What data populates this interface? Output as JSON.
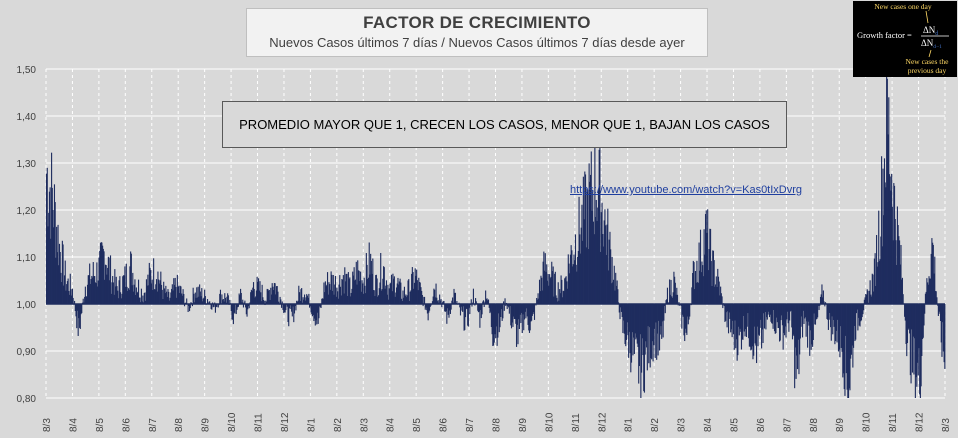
{
  "header": {
    "title": "FACTOR DE CRECIMIENTO",
    "subtitle": "Nuevos Casos últimos 7 días / Nuevos Casos últimos 7 días desde ayer"
  },
  "note": "PROMEDIO MAYOR QUE 1, CRECEN LOS CASOS, MENOR QUE 1, BAJAN LOS CASOS",
  "link": "https://www.youtube.com/watch?v=Kas0tIxDvrg",
  "formula": {
    "top_label": "New cases one day",
    "lhs": "Growth factor =",
    "numerator": "ΔN",
    "numerator_sub": "d",
    "denominator": "ΔN",
    "denominator_sub": "d−1",
    "bottom_label_1": "New cases the",
    "bottom_label_2": "previous day"
  },
  "colors": {
    "bars": "#1f2d5f",
    "grid": "#ffffff",
    "plot_bg": "#d9d9d9",
    "formula_text": "#ffd966",
    "formula_accent": "#4472c4"
  },
  "chart_data": {
    "type": "bar",
    "baseline": 1.0,
    "ylim": [
      0.8,
      1.5
    ],
    "yticks": [
      "1,50",
      "1,40",
      "1,30",
      "1,20",
      "1,10",
      "1,00",
      "0,90",
      "0,80"
    ],
    "ytick_values": [
      1.5,
      1.4,
      1.3,
      1.2,
      1.1,
      1.0,
      0.9,
      0.8
    ],
    "xtick_labels": [
      "8/3",
      "8/4",
      "8/5",
      "8/6",
      "8/7",
      "8/8",
      "8/9",
      "8/10",
      "8/11",
      "8/12",
      "8/1",
      "8/2",
      "8/3",
      "8/4",
      "8/5",
      "8/6",
      "8/7",
      "8/8",
      "8/9",
      "8/10",
      "8/11",
      "8/12",
      "8/1",
      "8/2",
      "8/3",
      "8/4",
      "8/5",
      "8/6",
      "8/7",
      "8/8",
      "8/9",
      "8/10",
      "8/11",
      "8/12",
      "8/3"
    ],
    "grid": true,
    "series_profile": [
      {
        "segment": "8/3",
        "values": [
          1.28,
          1.22,
          1.12,
          1.05
        ]
      },
      {
        "segment": "8/4",
        "values": [
          1.03,
          0.94,
          1.04,
          1.06
        ]
      },
      {
        "segment": "8/5",
        "values": [
          1.07,
          1.11,
          1.06,
          1.03
        ]
      },
      {
        "segment": "8/6",
        "values": [
          1.05,
          1.08,
          1.04,
          1.02
        ]
      },
      {
        "segment": "8/7",
        "values": [
          1.06,
          1.07,
          1.03,
          1.01
        ]
      },
      {
        "segment": "8/8",
        "values": [
          1.04,
          1.02,
          0.99,
          1.03
        ]
      },
      {
        "segment": "8/9",
        "values": [
          1.02,
          1.01,
          0.99,
          1.02
        ]
      },
      {
        "segment": "8/10",
        "values": [
          1.01,
          0.97,
          1.02,
          0.98
        ]
      },
      {
        "segment": "8/11",
        "values": [
          1.04,
          1.03,
          1.01,
          1.05
        ]
      },
      {
        "segment": "8/12",
        "values": [
          1.02,
          0.98,
          0.97,
          1.02
        ]
      },
      {
        "segment": "8/1",
        "values": [
          1.03,
          0.99,
          0.96,
          1.04
        ]
      },
      {
        "segment": "8/2",
        "values": [
          1.05,
          1.04,
          1.06,
          1.03
        ]
      },
      {
        "segment": "8/3",
        "values": [
          1.07,
          1.05,
          1.09,
          1.04
        ]
      },
      {
        "segment": "8/4",
        "values": [
          1.08,
          1.03,
          1.05,
          1.02
        ]
      },
      {
        "segment": "8/5",
        "values": [
          1.03,
          1.06,
          1.02,
          0.98
        ]
      },
      {
        "segment": "8/6",
        "values": [
          1.04,
          1.01,
          0.97,
          1.02
        ]
      },
      {
        "segment": "8/7",
        "values": [
          0.98,
          0.96,
          1.02,
          0.97
        ]
      },
      {
        "segment": "8/8",
        "values": [
          1.03,
          0.94,
          0.95,
          1.01
        ]
      },
      {
        "segment": "8/9",
        "values": [
          0.96,
          0.93,
          0.98,
          0.95
        ]
      },
      {
        "segment": "8/10",
        "values": [
          1.02,
          1.08,
          1.06,
          1.03
        ]
      },
      {
        "segment": "8/11",
        "values": [
          1.04,
          1.1,
          1.14,
          1.18
        ]
      },
      {
        "segment": "8/12",
        "values": [
          1.22,
          1.26,
          1.2,
          1.12
        ]
      },
      {
        "segment": "8/1",
        "values": [
          1.05,
          0.95,
          0.92,
          0.88
        ]
      },
      {
        "segment": "8/2",
        "values": [
          0.86,
          0.9,
          0.93,
          0.91
        ]
      },
      {
        "segment": "8/3",
        "values": [
          1.02,
          1.05,
          0.98,
          0.93
        ]
      },
      {
        "segment": "8/4",
        "values": [
          1.06,
          1.1,
          1.15,
          1.08
        ]
      },
      {
        "segment": "8/5",
        "values": [
          1.04,
          0.97,
          0.94,
          0.92
        ]
      },
      {
        "segment": "8/6",
        "values": [
          0.96,
          0.93,
          0.9,
          0.95
        ]
      },
      {
        "segment": "8/7",
        "values": [
          0.98,
          0.95,
          0.94,
          0.97
        ]
      },
      {
        "segment": "8/8",
        "values": [
          0.84,
          0.97,
          0.93,
          0.95
        ]
      },
      {
        "segment": "8/9",
        "values": [
          1.03,
          0.96,
          0.94,
          0.91
        ]
      },
      {
        "segment": "8/10",
        "values": [
          0.82,
          0.95,
          0.98,
          1.02
        ]
      },
      {
        "segment": "8/11",
        "values": [
          1.06,
          1.2,
          1.4,
          1.22
        ]
      },
      {
        "segment": "8/12",
        "values": [
          1.1,
          0.93,
          0.87,
          0.84
        ]
      },
      {
        "segment": "8/3",
        "values": [
          1.03,
          1.13,
          0.96,
          0.87
        ]
      }
    ]
  }
}
